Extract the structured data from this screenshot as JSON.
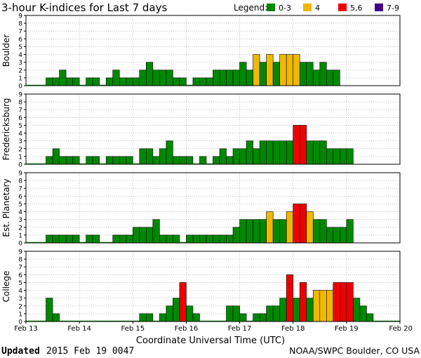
{
  "chart_data": {
    "type": "bar",
    "title": "3-hour K-indices for Last 7 days",
    "legend": {
      "title": "Legend:",
      "placement": "top-right",
      "entries": [
        {
          "label": "0-3",
          "color": "#008800"
        },
        {
          "label": "4",
          "color": "#f0b800"
        },
        {
          "label": "5,6",
          "color": "#ee0000"
        },
        {
          "label": "7-9",
          "color": "#440088"
        }
      ]
    },
    "xlabel": "Coordinate Universal Time (UTC)",
    "x_ticks": [
      "Feb 13",
      "Feb 14",
      "Feb 15",
      "Feb 16",
      "Feb 17",
      "Feb 18",
      "Feb 19",
      "Feb 20"
    ],
    "interval_hours": 3,
    "ylim": [
      0,
      9
    ],
    "y_ticks": [
      "0",
      "1",
      "2",
      "3",
      "4",
      "5",
      "6",
      "7",
      "8",
      "9"
    ],
    "grid": true,
    "panels": [
      {
        "name": "Boulder",
        "values": [
          0,
          0,
          0,
          1,
          1,
          2,
          1,
          1,
          0,
          1,
          1,
          0,
          1,
          2,
          1,
          1,
          1,
          2,
          3,
          2,
          2,
          2,
          1,
          1,
          0,
          1,
          1,
          1,
          2,
          2,
          2,
          2,
          3,
          2,
          4,
          3,
          4,
          3,
          4,
          4,
          4,
          3,
          3,
          2,
          3,
          2,
          2,
          null,
          null,
          null,
          null,
          null,
          null,
          null,
          null,
          null
        ]
      },
      {
        "name": "Fredericksburg",
        "values": [
          0,
          0,
          0,
          1,
          2,
          1,
          1,
          1,
          0,
          1,
          1,
          0,
          1,
          1,
          1,
          1,
          0,
          2,
          2,
          1,
          2,
          3,
          1,
          1,
          1,
          0,
          1,
          0,
          1,
          2,
          1,
          2,
          2,
          3,
          2,
          3,
          3,
          3,
          3,
          3,
          5,
          5,
          3,
          3,
          3,
          2,
          2,
          2,
          2,
          null,
          null,
          null,
          null,
          null,
          null,
          null
        ]
      },
      {
        "name": "Est. Planetary",
        "values": [
          0,
          0,
          0,
          1,
          1,
          1,
          1,
          1,
          0,
          1,
          1,
          0,
          0,
          1,
          1,
          1,
          2,
          2,
          2,
          3,
          1,
          1,
          1,
          0,
          1,
          1,
          1,
          1,
          1,
          1,
          1,
          2,
          3,
          3,
          3,
          3,
          4,
          3,
          3,
          4,
          5,
          5,
          4,
          3,
          3,
          2,
          2,
          2,
          3,
          null,
          null,
          null,
          null,
          null,
          null,
          null
        ]
      },
      {
        "name": "College",
        "values": [
          0,
          0,
          0,
          3,
          1,
          0,
          0,
          0,
          0,
          0,
          0,
          0,
          0,
          0,
          0,
          0,
          0,
          1,
          1,
          0,
          1,
          2,
          3,
          5,
          2,
          1,
          0,
          0,
          0,
          0,
          2,
          2,
          1,
          0,
          1,
          1,
          2,
          2,
          3,
          6,
          3,
          5,
          3,
          4,
          4,
          4,
          5,
          5,
          5,
          3,
          2,
          1,
          0,
          0,
          0,
          0
        ]
      }
    ]
  },
  "footer": {
    "updated_label": "Updated",
    "updated_value": "2015 Feb 19 0047",
    "credit": "NOAA/SWPC Boulder, CO USA"
  }
}
